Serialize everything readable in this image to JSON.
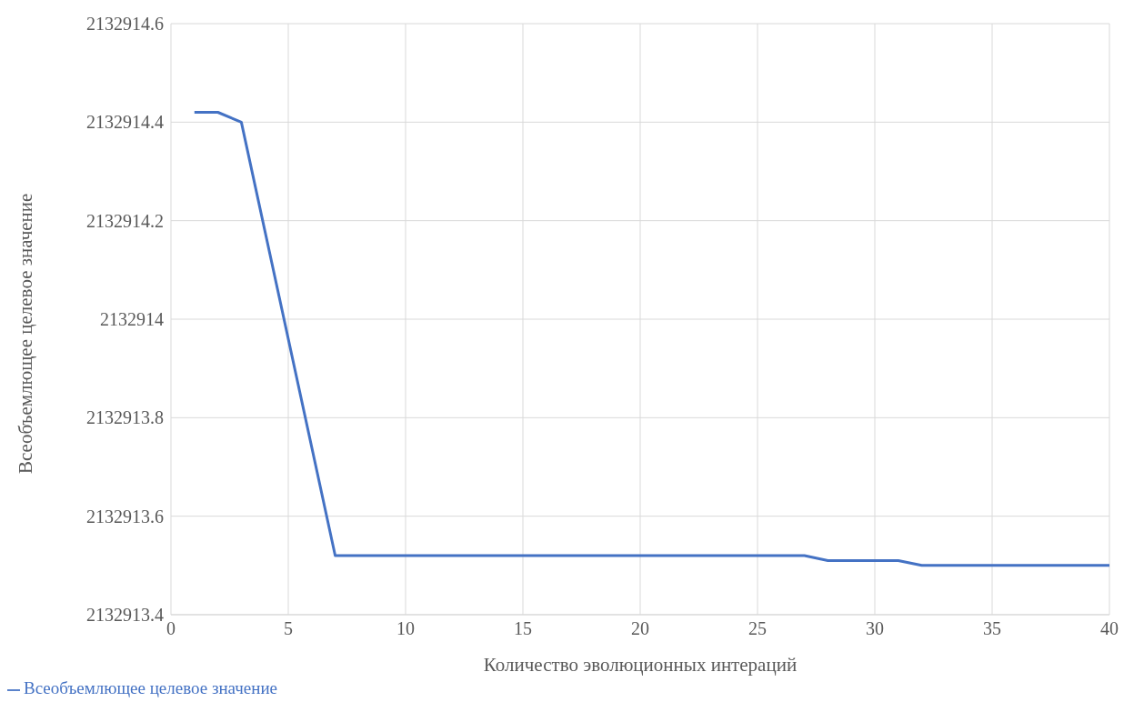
{
  "chart_data": {
    "type": "line",
    "xlabel": "Количество эволюционных интераций",
    "ylabel": "Всеобъемлющее целевое значение",
    "x": [
      1,
      2,
      3,
      7,
      27,
      28,
      31,
      32,
      40
    ],
    "series": [
      {
        "name": "Всеобъемлющее целевое значение",
        "color": "#4472c4",
        "values": [
          2132914.42,
          2132914.42,
          2132914.4,
          2132913.52,
          2132913.52,
          2132913.51,
          2132913.51,
          2132913.5,
          2132913.5
        ]
      }
    ],
    "xlim": [
      0,
      40
    ],
    "xticks": [
      0,
      5,
      10,
      15,
      20,
      25,
      30,
      35,
      40
    ],
    "ylim": [
      2132913.4,
      2132914.6
    ],
    "yticks": [
      2132913.4,
      2132913.6,
      2132913.8,
      2132914,
      2132914.2,
      2132914.4,
      2132914.6
    ],
    "grid": true,
    "legend": "bottom left",
    "marker": "none",
    "line_style": "solid"
  }
}
